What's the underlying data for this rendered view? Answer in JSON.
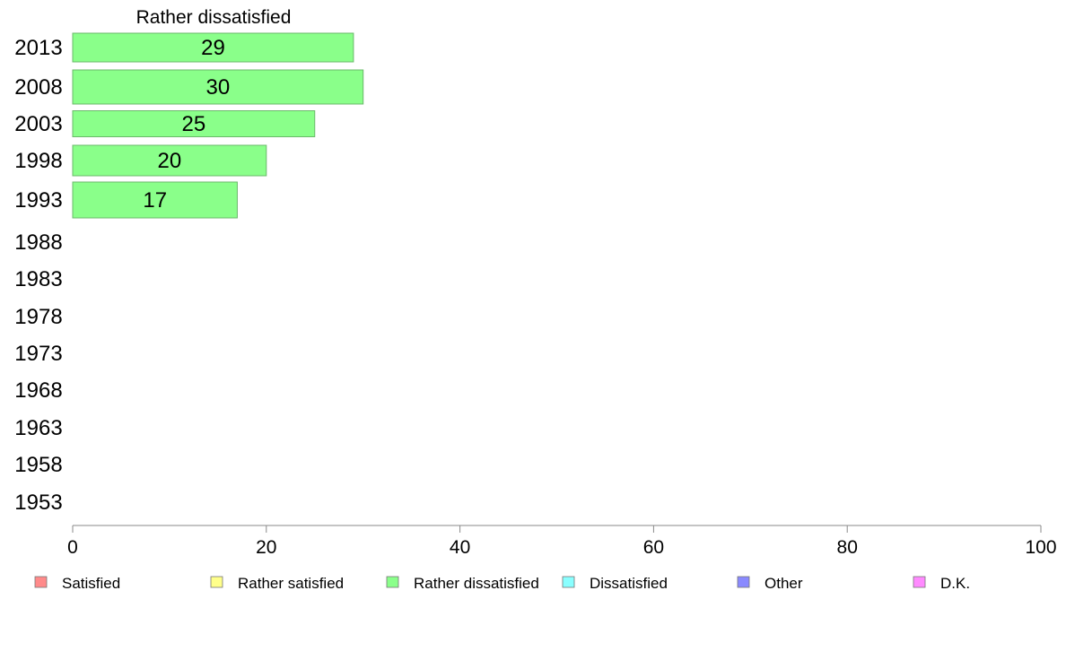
{
  "chart_data": {
    "type": "bar",
    "orientation": "horizontal",
    "panel_title": "Rather dissatisfied",
    "categories": [
      "2013",
      "2008",
      "2003",
      "1998",
      "1993",
      "1988",
      "1983",
      "1978",
      "1973",
      "1968",
      "1963",
      "1958",
      "1953"
    ],
    "series": [
      {
        "name": "Rather dissatisfied",
        "values": [
          29,
          30,
          25,
          20,
          17,
          null,
          null,
          null,
          null,
          null,
          null,
          null,
          null
        ]
      }
    ],
    "bar_labels": [
      "29",
      "30",
      "25",
      "20",
      "17"
    ],
    "xlim": [
      0,
      100
    ],
    "x_ticks": [
      0,
      20,
      40,
      60,
      80,
      100
    ],
    "x_tick_labels": [
      "0",
      "20",
      "40",
      "60",
      "80",
      "100"
    ],
    "grid": false,
    "legend_position": "bottom",
    "legend": [
      {
        "label": "Satisfied",
        "color": "#ff8a8a"
      },
      {
        "label": "Rather satisfied",
        "color": "#ffff8a"
      },
      {
        "label": "Rather dissatisfied",
        "color": "#8aff8a"
      },
      {
        "label": "Dissatisfied",
        "color": "#8affff"
      },
      {
        "label": "Other",
        "color": "#8a8aff"
      },
      {
        "label": "D.K.",
        "color": "#ff8aff"
      }
    ],
    "bar_color": "#8aff8a"
  }
}
